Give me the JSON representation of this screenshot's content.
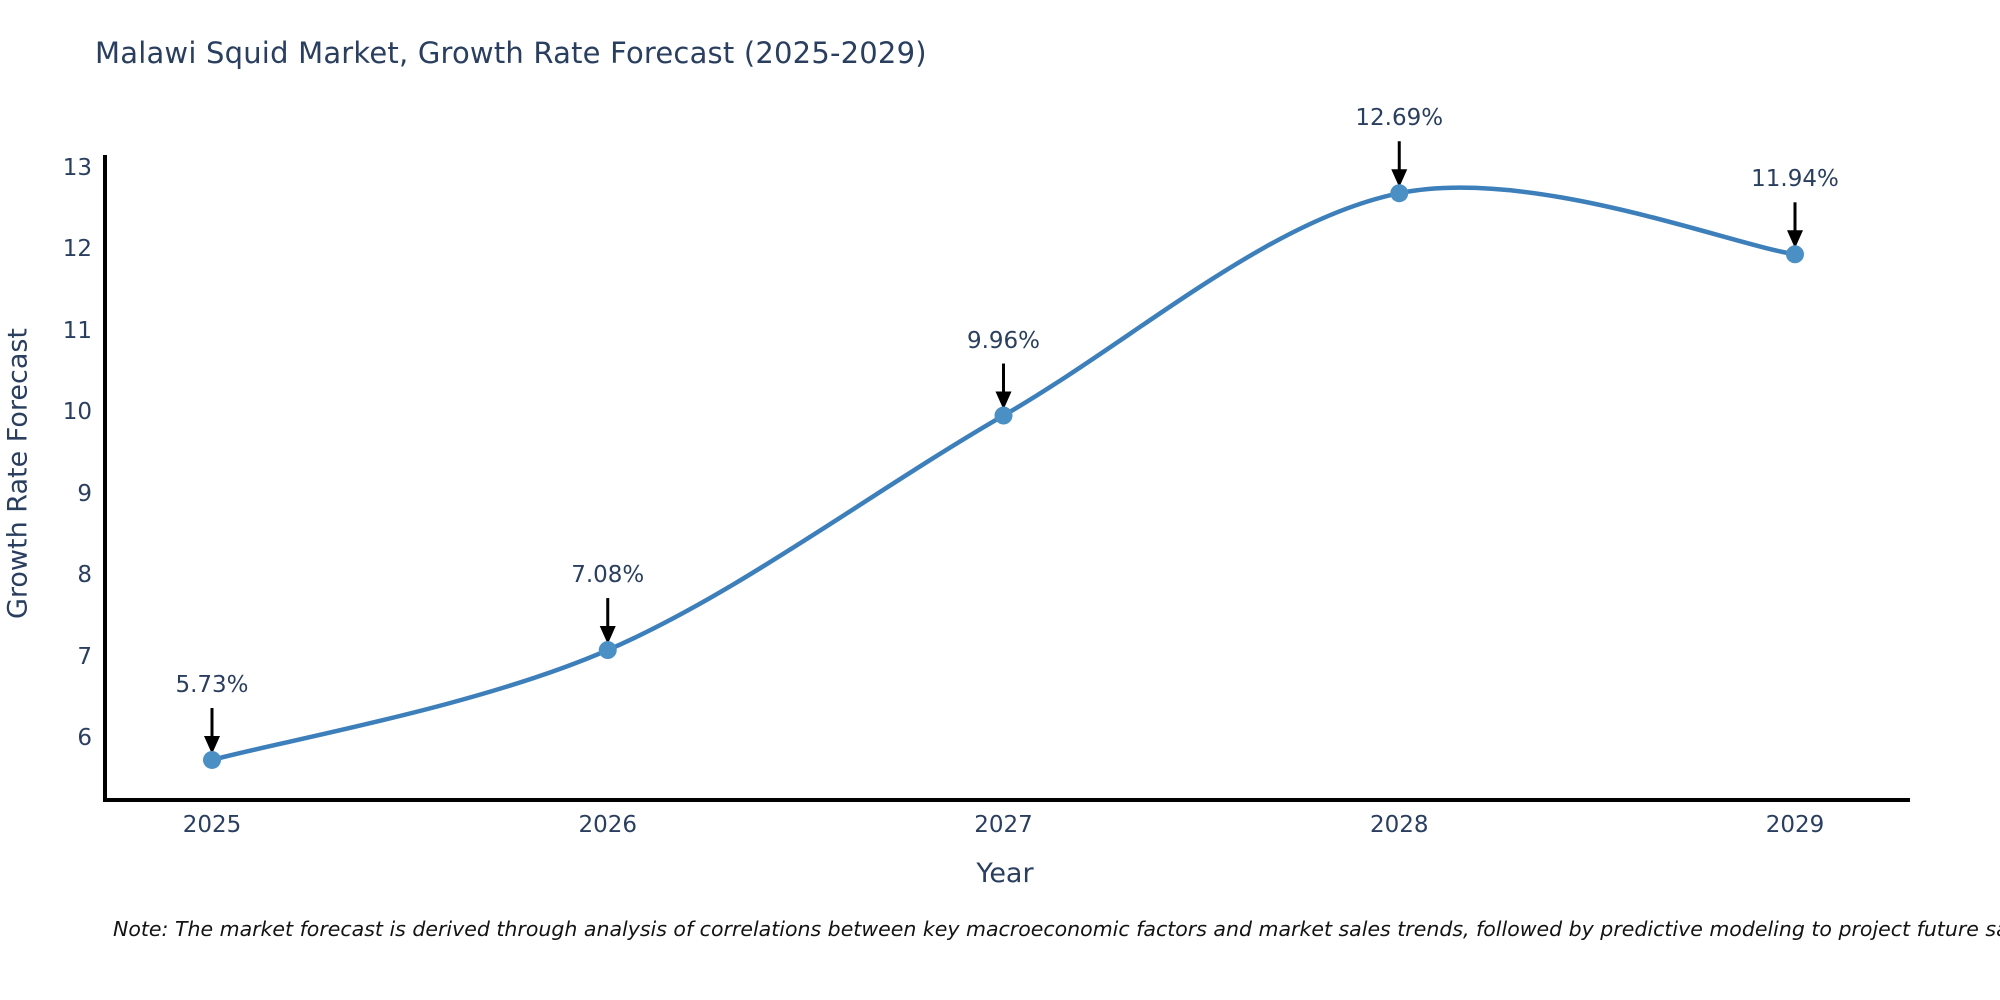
{
  "chart": {
    "title": "Malawi Squid Market, Growth Rate Forecast (2025-2029)",
    "note": "Note: The market forecast is derived through analysis of correlations between key macroeconomic factors and market sales trends, followed by predictive modeling to project future sales",
    "colors": {
      "title_text": "#2a3f5f",
      "tick_text": "#2a3f5f",
      "axis_line": "#000000",
      "series_line": "#3d7fba",
      "marker_fill": "#4a90c4",
      "annotation_arrow": "#000000",
      "background": "#ffffff"
    }
  },
  "chart_data": {
    "type": "line",
    "title": "Malawi Squid Market, Growth Rate Forecast (2025-2029)",
    "xlabel": "Year",
    "ylabel": "Growth Rate Forecast",
    "x": [
      2025,
      2026,
      2027,
      2028,
      2029
    ],
    "values": [
      5.73,
      7.08,
      9.96,
      12.69,
      11.94
    ],
    "point_labels": [
      "5.73%",
      "7.08%",
      "9.96%",
      "12.69%",
      "11.94%"
    ],
    "xticks": [
      "2025",
      "2026",
      "2027",
      "2028",
      "2029"
    ],
    "yticks": [
      6,
      7,
      8,
      9,
      10,
      11,
      12,
      13
    ],
    "ylim": [
      5.24,
      13.1
    ],
    "xlim": [
      2024.73,
      2029.29
    ],
    "line_shape": "spline",
    "grid": false,
    "legend": false,
    "annotation_style": "value-label-with-down-arrow",
    "footnote": "Note: The market forecast is derived through analysis of correlations between key macroeconomic factors and market sales trends, followed by predictive modeling to project future sales"
  }
}
